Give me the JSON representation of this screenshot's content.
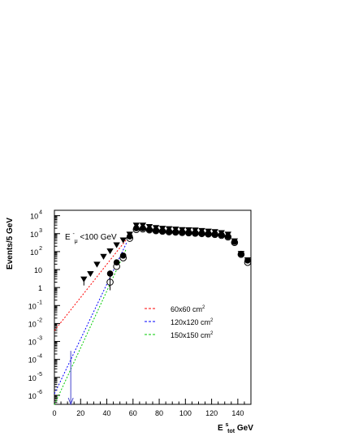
{
  "chart_data": {
    "type": "scatter",
    "xlabel_main": "E",
    "xlabel_sup": "s",
    "xlabel_sub": "tot",
    "xlabel_unit": " GeV",
    "ylabel": "Events/5 GeV",
    "annotation": {
      "main": "E",
      "sup": "-",
      "sub": "μ",
      "rest": "<100 GeV"
    },
    "x_ticks": [
      "0",
      "20",
      "40",
      "60",
      "80",
      "100",
      "120",
      "140"
    ],
    "y_ticks": [
      {
        "base": "10",
        "exp": "-6"
      },
      {
        "base": "10",
        "exp": "-5"
      },
      {
        "base": "10",
        "exp": "-4"
      },
      {
        "base": "10",
        "exp": "-3"
      },
      {
        "base": "10",
        "exp": "-2"
      },
      {
        "base": "10",
        "exp": "-1"
      },
      {
        "base": "1",
        "exp": ""
      },
      {
        "base": "10",
        "exp": ""
      },
      {
        "base": "10",
        "exp": "2"
      },
      {
        "base": "10",
        "exp": "3"
      },
      {
        "base": "10",
        "exp": "4"
      }
    ],
    "xlim": [
      0,
      150
    ],
    "ylim_log10": [
      -6.5,
      4.3
    ],
    "log_y": true,
    "grid": false,
    "legend_position": "center-right",
    "series": [
      {
        "name": "60x60 cm",
        "name_sup": "2",
        "color": "#ff0000",
        "marker": "triangle-down",
        "fit_line": {
          "x": [
            0,
            58
          ],
          "y": [
            0.004,
            900
          ]
        },
        "x": [
          22.5,
          27.5,
          32.5,
          37.5,
          42.5,
          47.5,
          52.5,
          57.5,
          62.5,
          67.5,
          72.5,
          77.5,
          82.5,
          87.5,
          92.5,
          97.5,
          102.5,
          107.5,
          112.5,
          117.5,
          122.5,
          127.5,
          132.5,
          137.5,
          142.5,
          147.5
        ],
        "y": [
          3,
          6,
          20,
          55,
          110,
          240,
          450,
          950,
          3000,
          3000,
          2500,
          2200,
          2000,
          1900,
          1800,
          1700,
          1650,
          1600,
          1500,
          1400,
          1300,
          1150,
          950,
          400,
          80,
          35
        ]
      },
      {
        "name": "120x120 cm",
        "name_sup": "2",
        "color": "#0000ff",
        "marker": "circle-filled",
        "fit_line": {
          "x": [
            0,
            55
          ],
          "y": [
            1.2e-06,
            300
          ]
        },
        "x": [
          42.5,
          47.5,
          52.5,
          57.5,
          62.5,
          67.5,
          72.5,
          77.5,
          82.5,
          87.5,
          92.5,
          97.5,
          102.5,
          107.5,
          112.5,
          117.5,
          122.5,
          127.5,
          132.5,
          137.5,
          142.5,
          147.5
        ],
        "y": [
          6,
          25,
          60,
          700,
          2000,
          2000,
          1700,
          1500,
          1400,
          1300,
          1250,
          1200,
          1150,
          1100,
          1050,
          1000,
          950,
          850,
          700,
          350,
          75,
          32
        ]
      },
      {
        "name": "150x150 cm",
        "name_sup": "2",
        "color": "#00cc00",
        "marker": "circle-open",
        "fit_line": {
          "x": [
            0,
            55
          ],
          "y": [
            3e-07,
            150
          ]
        },
        "x": [
          42.5,
          47.5,
          52.5,
          57.5,
          62.5,
          67.5,
          72.5,
          77.5,
          82.5,
          87.5,
          92.5,
          97.5,
          102.5,
          107.5,
          112.5,
          117.5,
          122.5,
          127.5,
          132.5,
          137.5,
          142.5,
          147.5
        ],
        "y": [
          2,
          15,
          45,
          550,
          1700,
          1800,
          1600,
          1450,
          1350,
          1250,
          1200,
          1150,
          1100,
          1050,
          1000,
          950,
          900,
          800,
          650,
          320,
          70,
          25
        ]
      }
    ],
    "arrow": {
      "x": 12.5,
      "y_from": 0.0003,
      "y_to": 1e-06,
      "color": "#4444cc"
    }
  }
}
